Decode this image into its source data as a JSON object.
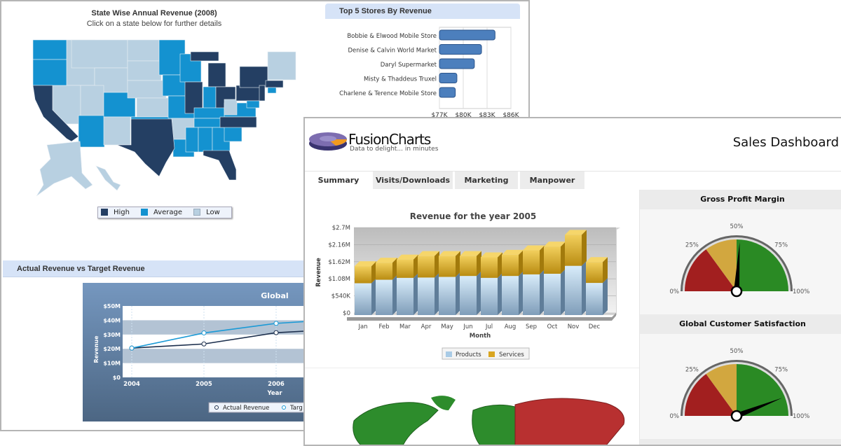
{
  "us_map": {
    "title": "State Wise Annual Revenue (2008)",
    "subtitle": "Click on a state below for further details",
    "legend": [
      {
        "label": "High",
        "color": "#243f63"
      },
      {
        "label": "Average",
        "color": "#1492d0"
      },
      {
        "label": "Low",
        "color": "#b8d0e1"
      }
    ]
  },
  "top5": {
    "title": "Top 5 Stores By Revenue",
    "chart_data": {
      "type": "bar",
      "orientation": "horizontal",
      "categories": [
        "Bobbie & Elwood Mobile Store",
        "Denise & Calvin World Market",
        "Daryl Supermarket",
        "Misty & Thaddeus Truxel",
        "Charlene & Terence Mobile Store"
      ],
      "values": [
        84.0,
        82.3,
        81.4,
        79.2,
        79.0
      ],
      "unit": "K",
      "xlim": [
        77,
        86
      ],
      "ticks": [
        "$77K",
        "$80K",
        "$83K",
        "$86K"
      ],
      "grid": true
    }
  },
  "actual_vs_target": {
    "title": "Actual Revenue vs Target Revenue",
    "chart_data": {
      "type": "line",
      "title": "Global",
      "xlabel": "Year",
      "ylabel": "Revenue",
      "x": [
        "2004",
        "2005",
        "2006"
      ],
      "ylim": [
        0,
        50
      ],
      "yticks": [
        "$0",
        "$10M",
        "$20M",
        "$30M",
        "$40M",
        "$50M"
      ],
      "series": [
        {
          "name": "Actual Revenue",
          "values": [
            20.5,
            23.4,
            31.3
          ],
          "color": "#1c2f4d"
        },
        {
          "name": "Target Revenue",
          "values": [
            20.5,
            31.1,
            37.8
          ],
          "color": "#1b9ad6"
        }
      ],
      "legend_visible": [
        "Actual Revenue",
        "Targ"
      ]
    }
  },
  "dashboard": {
    "logo": "FusionCharts",
    "tagline": "Data to delight... in minutes",
    "title": "Sales Dashboard",
    "tabs": [
      {
        "label": "Summary",
        "active": true
      },
      {
        "label": "Visits/Downloads",
        "active": false
      },
      {
        "label": "Marketing",
        "active": false
      },
      {
        "label": "Manpower",
        "active": false
      }
    ]
  },
  "chart_data": {
    "type": "bar",
    "stacked": true,
    "title": "Revenue for the year 2005",
    "xlabel": "Month",
    "ylabel": "Revenue",
    "categories": [
      "Jan",
      "Feb",
      "Mar",
      "Apr",
      "May",
      "Jun",
      "Jul",
      "Aug",
      "Sep",
      "Oct",
      "Nov",
      "Dec"
    ],
    "ylim": [
      0,
      2.7
    ],
    "yticks": [
      "$0",
      "$540K",
      "$1.08M",
      "$1.62M",
      "$2.16M",
      "$2.7M"
    ],
    "series": [
      {
        "name": "Products",
        "color": "#a9cbe6",
        "values": [
          0.94,
          1.05,
          1.11,
          1.12,
          1.14,
          1.17,
          1.11,
          1.17,
          1.22,
          1.24,
          1.49,
          0.95
        ]
      },
      {
        "name": "Services",
        "color": "#d9a520",
        "values": [
          0.54,
          0.54,
          0.58,
          0.68,
          0.66,
          0.63,
          0.65,
          0.67,
          0.76,
          0.86,
          0.98,
          0.66
        ]
      }
    ],
    "legend_placement": "bottom"
  },
  "gauges": [
    {
      "title": "Gross Profit Margin",
      "value": 52,
      "labels": [
        "0%",
        "25%",
        "50%",
        "75%",
        "100%"
      ],
      "bands": [
        {
          "from": 0,
          "to": 30,
          "color": "#a21f1f"
        },
        {
          "from": 30,
          "to": 50,
          "color": "#d2a73f"
        },
        {
          "from": 50,
          "to": 100,
          "color": "#2a8a24"
        }
      ]
    },
    {
      "title": "Global Customer Satisfaction",
      "value": 88,
      "labels": [
        "0%",
        "25%",
        "50%",
        "75%",
        "100%"
      ],
      "bands": [
        {
          "from": 0,
          "to": 30,
          "color": "#a21f1f"
        },
        {
          "from": 30,
          "to": 50,
          "color": "#d2a73f"
        },
        {
          "from": 50,
          "to": 100,
          "color": "#2a8a24"
        }
      ]
    }
  ]
}
